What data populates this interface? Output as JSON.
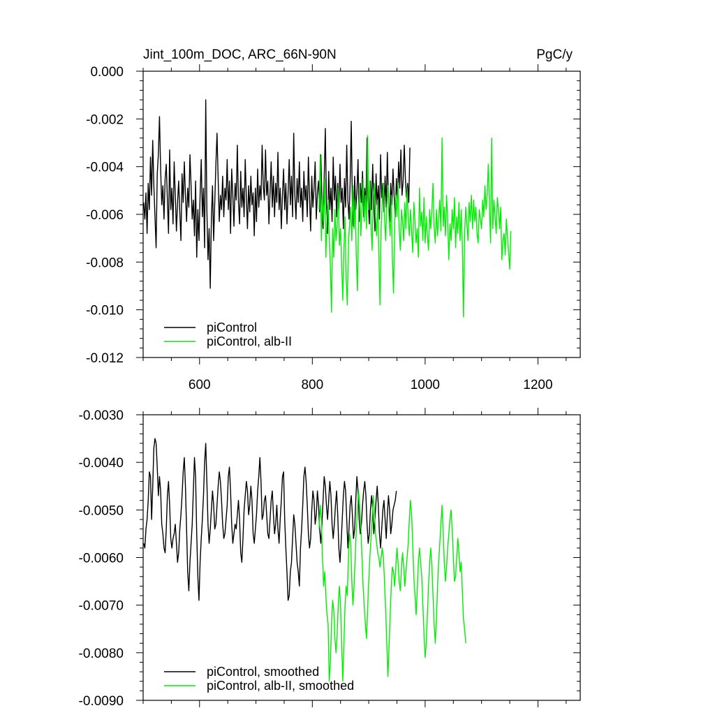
{
  "chart_data": [
    {
      "type": "line",
      "title": "Jint_100m_DOC, ARC_66N-90N",
      "units": "PgC/y",
      "xlim": [
        500,
        1275
      ],
      "ylim": [
        -0.012,
        0.0
      ],
      "x_ticks": [
        600,
        800,
        1000,
        1200
      ],
      "x_tick_labels": [
        "600",
        "800",
        "1000",
        "1200"
      ],
      "y_ticks": [
        0.0,
        -0.002,
        -0.004,
        -0.006,
        -0.008,
        -0.01,
        -0.012
      ],
      "y_tick_labels": [
        "0.000",
        "-0.002",
        "-0.004",
        "-0.006",
        "-0.008",
        "-0.010",
        "-0.012"
      ],
      "legend_position": "bottom-left",
      "series": [
        {
          "name": "piControl",
          "color": "#000000",
          "x_start": 501,
          "x_step": 2,
          "values": [
            -0.0055,
            -0.0062,
            -0.0051,
            -0.0068,
            -0.0047,
            -0.0058,
            -0.0036,
            -0.0052,
            -0.0029,
            -0.0048,
            -0.0061,
            -0.0074,
            -0.0043,
            -0.0035,
            -0.0019,
            -0.0041,
            -0.0056,
            -0.0048,
            -0.0062,
            -0.0045,
            -0.0039,
            -0.0054,
            -0.0068,
            -0.0033,
            -0.0058,
            -0.0049,
            -0.0064,
            -0.0038,
            -0.0052,
            -0.0067,
            -0.0055,
            -0.0046,
            -0.0059,
            -0.0071,
            -0.0043,
            -0.0055,
            -0.0038,
            -0.0052,
            -0.0063,
            -0.0049,
            -0.0057,
            -0.0035,
            -0.0048,
            -0.0062,
            -0.0054,
            -0.0069,
            -0.0046,
            -0.0078,
            -0.0058,
            -0.0071,
            -0.0052,
            -0.0037,
            -0.0061,
            -0.0049,
            -0.0074,
            -0.0012,
            -0.0058,
            -0.0079,
            -0.0066,
            -0.0091,
            -0.0062,
            -0.0048,
            -0.0071,
            -0.0055,
            -0.0039,
            -0.0026,
            -0.0045,
            -0.0063,
            -0.0052,
            -0.0058,
            -0.0044,
            -0.0061,
            -0.0049,
            -0.0054,
            -0.0037,
            -0.0058,
            -0.0046,
            -0.0068,
            -0.0041,
            -0.0052,
            -0.0065,
            -0.0047,
            -0.0054,
            -0.0031,
            -0.0055,
            -0.0064,
            -0.0042,
            -0.0057,
            -0.0049,
            -0.0061,
            -0.0037,
            -0.0053,
            -0.0066,
            -0.0048,
            -0.0059,
            -0.0044,
            -0.0056,
            -0.0051,
            -0.0069,
            -0.0049,
            -0.0063,
            -0.0041,
            -0.0057,
            -0.0048,
            -0.0054,
            -0.0031,
            -0.0048,
            -0.0054,
            -0.0033,
            -0.0052,
            -0.0046,
            -0.0064,
            -0.0051,
            -0.0038,
            -0.0057,
            -0.0044,
            -0.0061,
            -0.0047,
            -0.0055,
            -0.0034,
            -0.0058,
            -0.0049,
            -0.0066,
            -0.0052,
            -0.0041,
            -0.0058,
            -0.0047,
            -0.0064,
            -0.0051,
            -0.0037,
            -0.0056,
            -0.0044,
            -0.0061,
            -0.0026,
            -0.0052,
            -0.0062,
            -0.0045,
            -0.0055,
            -0.0038,
            -0.0057,
            -0.0049,
            -0.0063,
            -0.0042,
            -0.0054,
            -0.0048,
            -0.0061,
            -0.0036,
            -0.0053,
            -0.0067,
            -0.0044,
            -0.0057,
            -0.0049,
            -0.0038,
            -0.0062,
            -0.0051,
            -0.0046,
            -0.0059,
            -0.0035,
            -0.0053,
            -0.0066,
            -0.0045,
            -0.0024,
            -0.0055,
            -0.0068,
            -0.0042,
            -0.0058,
            -0.0049,
            -0.0063,
            -0.0036,
            -0.0054,
            -0.0044,
            -0.0061,
            -0.0047,
            -0.0058,
            -0.0039,
            -0.0055,
            -0.0049,
            -0.0066,
            -0.0045,
            -0.0057,
            -0.0031,
            -0.0054,
            -0.0062,
            -0.0047,
            -0.0021,
            -0.0056,
            -0.0065,
            -0.0044,
            -0.0058,
            -0.0051,
            -0.0037,
            -0.0063,
            -0.0047,
            -0.0055,
            -0.0042,
            -0.0061,
            -0.0049,
            -0.0057,
            -0.0028,
            -0.0054,
            -0.0064,
            -0.0046,
            -0.0058,
            -0.0039,
            -0.0055,
            -0.0067,
            -0.0043,
            -0.0056,
            -0.0048,
            -0.0062,
            -0.0035,
            -0.0053,
            -0.0047,
            -0.0059,
            -0.0044,
            -0.0057,
            -0.0034,
            -0.0055,
            -0.0063,
            -0.0047,
            -0.0056,
            -0.0041,
            -0.0052,
            -0.0061,
            -0.0045,
            -0.0054,
            -0.0038,
            -0.0049,
            -0.0033,
            -0.0052,
            -0.0046,
            -0.0031,
            -0.0045,
            -0.0053,
            -0.0047,
            -0.0055,
            -0.0032
          ]
        },
        {
          "name": "piControl, alb-II",
          "color": "#00ee00",
          "x_start": 812,
          "x_step": 2,
          "values": [
            -0.0058,
            -0.0035,
            -0.0071,
            -0.0052,
            -0.0063,
            -0.0045,
            -0.0078,
            -0.0061,
            -0.0054,
            -0.0069,
            -0.0082,
            -0.0101,
            -0.0066,
            -0.0078,
            -0.0058,
            -0.0071,
            -0.0064,
            -0.0049,
            -0.0073,
            -0.0066,
            -0.0081,
            -0.0096,
            -0.0074,
            -0.0061,
            -0.0087,
            -0.0098,
            -0.0072,
            -0.0064,
            -0.0057,
            -0.0071,
            -0.0048,
            -0.0066,
            -0.0054,
            -0.0078,
            -0.0092,
            -0.0061,
            -0.0048,
            -0.0069,
            -0.0057,
            -0.0045,
            -0.0063,
            -0.0052,
            -0.0066,
            -0.0027,
            -0.0058,
            -0.0046,
            -0.0064,
            -0.0075,
            -0.0052,
            -0.0047,
            -0.0061,
            -0.0069,
            -0.0054,
            -0.0078,
            -0.0098,
            -0.0065,
            -0.0055,
            -0.0047,
            -0.0061,
            -0.0071,
            -0.0056,
            -0.0048,
            -0.0062,
            -0.0069,
            -0.0052,
            -0.0079,
            -0.0093,
            -0.0064,
            -0.0052,
            -0.0061,
            -0.0047,
            -0.0066,
            -0.0075,
            -0.0058,
            -0.0063,
            -0.0071,
            -0.0055,
            -0.0066,
            -0.0049,
            -0.0062,
            -0.0069,
            -0.0058,
            -0.0067,
            -0.0076,
            -0.0055,
            -0.0063,
            -0.0072,
            -0.0066,
            -0.0078,
            -0.0049,
            -0.0065,
            -0.0059,
            -0.0071,
            -0.0053,
            -0.0072,
            -0.0061,
            -0.0069,
            -0.0075,
            -0.0058,
            -0.0066,
            -0.0058,
            -0.0047,
            -0.0065,
            -0.0072,
            -0.0058,
            -0.0069,
            -0.0061,
            -0.0054,
            -0.0067,
            -0.0028,
            -0.0065,
            -0.0057,
            -0.0069,
            -0.0052,
            -0.0062,
            -0.0079,
            -0.0064,
            -0.0071,
            -0.0058,
            -0.0066,
            -0.0053,
            -0.0074,
            -0.0061,
            -0.0068,
            -0.0055,
            -0.0071,
            -0.0058,
            -0.0073,
            -0.0103,
            -0.0068,
            -0.0057,
            -0.0064,
            -0.0071,
            -0.0055,
            -0.0063,
            -0.0052,
            -0.0066,
            -0.0054,
            -0.0063,
            -0.0057,
            -0.0068,
            -0.0072,
            -0.0058,
            -0.0062,
            -0.0066,
            -0.0054,
            -0.0061,
            -0.0048,
            -0.0058,
            -0.0052,
            -0.0039,
            -0.0056,
            -0.0072,
            -0.0028,
            -0.0066,
            -0.0054,
            -0.0061,
            -0.0068,
            -0.0053,
            -0.0058,
            -0.0066,
            -0.0057,
            -0.0079,
            -0.0071,
            -0.0068,
            -0.0077,
            -0.0062,
            -0.0069,
            -0.0076,
            -0.0083,
            -0.0067
          ]
        }
      ]
    },
    {
      "type": "line",
      "xlim": [
        500,
        1275
      ],
      "ylim": [
        -0.009,
        -0.003
      ],
      "x_ticks": [
        600,
        800,
        1000,
        1200
      ],
      "y_ticks": [
        -0.003,
        -0.004,
        -0.005,
        -0.006,
        -0.007,
        -0.008,
        -0.009
      ],
      "y_tick_labels": [
        "-0.0030",
        "-0.0040",
        "-0.0050",
        "-0.0060",
        "-0.0070",
        "-0.0080",
        "-0.0090"
      ],
      "legend_position": "bottom-left",
      "series": [
        {
          "name": "piControl, smoothed",
          "color": "#000000",
          "x_start": 501,
          "x_step": 2,
          "values": [
            -0.0057,
            -0.0058,
            -0.0054,
            -0.0052,
            -0.0048,
            -0.0042,
            -0.0043,
            -0.0052,
            -0.0045,
            -0.0037,
            -0.0035,
            -0.0036,
            -0.0041,
            -0.0047,
            -0.0043,
            -0.0046,
            -0.0053,
            -0.0055,
            -0.0058,
            -0.0059,
            -0.0054,
            -0.0047,
            -0.0044,
            -0.0049,
            -0.0056,
            -0.0058,
            -0.0056,
            -0.0055,
            -0.0053,
            -0.0057,
            -0.0061,
            -0.0059,
            -0.0054,
            -0.0051,
            -0.0047,
            -0.0042,
            -0.0039,
            -0.0045,
            -0.0054,
            -0.0063,
            -0.0067,
            -0.0061,
            -0.0057,
            -0.0053,
            -0.0046,
            -0.0039,
            -0.0043,
            -0.0055,
            -0.0064,
            -0.0069,
            -0.0061,
            -0.0056,
            -0.0052,
            -0.0047,
            -0.004,
            -0.0036,
            -0.0044,
            -0.0053,
            -0.0057,
            -0.0054,
            -0.005,
            -0.0046,
            -0.0049,
            -0.0054,
            -0.0053,
            -0.0049,
            -0.0045,
            -0.0042,
            -0.0044,
            -0.0048,
            -0.0053,
            -0.0056,
            -0.0055,
            -0.0052,
            -0.0049,
            -0.0043,
            -0.0041,
            -0.0046,
            -0.0053,
            -0.0057,
            -0.0055,
            -0.0053,
            -0.0054,
            -0.0051,
            -0.0048,
            -0.0052,
            -0.0059,
            -0.0061,
            -0.0056,
            -0.005,
            -0.0047,
            -0.0044,
            -0.0046,
            -0.0051,
            -0.0049,
            -0.0045,
            -0.0048,
            -0.0055,
            -0.0057,
            -0.0054,
            -0.0051,
            -0.0046,
            -0.0043,
            -0.0039,
            -0.0044,
            -0.0052,
            -0.0051,
            -0.0048,
            -0.0047,
            -0.0051,
            -0.0055,
            -0.0056,
            -0.0052,
            -0.0048,
            -0.0046,
            -0.0051,
            -0.0055,
            -0.0053,
            -0.0049,
            -0.0054,
            -0.0057,
            -0.0052,
            -0.0048,
            -0.0043,
            -0.0042,
            -0.0052,
            -0.0058,
            -0.0063,
            -0.0069,
            -0.0068,
            -0.0063,
            -0.0061,
            -0.0056,
            -0.0051,
            -0.0053,
            -0.0057,
            -0.0061,
            -0.0063,
            -0.0066,
            -0.0058,
            -0.0054,
            -0.0049,
            -0.0043,
            -0.0041,
            -0.0044,
            -0.0049,
            -0.0055,
            -0.0058,
            -0.0056,
            -0.005,
            -0.0046,
            -0.0048,
            -0.0053,
            -0.0051,
            -0.0046,
            -0.0049,
            -0.0054,
            -0.0057,
            -0.0053,
            -0.0048,
            -0.0043,
            -0.0045,
            -0.0049,
            -0.0052,
            -0.0048,
            -0.0044,
            -0.0047,
            -0.0053,
            -0.0056,
            -0.0053,
            -0.0049,
            -0.0046,
            -0.0051,
            -0.0058,
            -0.0061,
            -0.0057,
            -0.0052,
            -0.0047,
            -0.0044,
            -0.0046,
            -0.0052,
            -0.0058,
            -0.0054,
            -0.0049,
            -0.0047,
            -0.0051,
            -0.0056,
            -0.0054,
            -0.0048,
            -0.0043,
            -0.0046,
            -0.0052,
            -0.0055,
            -0.0053,
            -0.0049,
            -0.0046,
            -0.0044,
            -0.0047,
            -0.0053,
            -0.0057,
            -0.0055,
            -0.005,
            -0.0047,
            -0.005,
            -0.0055,
            -0.0052,
            -0.0048,
            -0.0045,
            -0.0049,
            -0.0055,
            -0.0058,
            -0.0054,
            -0.005,
            -0.0048,
            -0.0052,
            -0.0056,
            -0.0051,
            -0.0047,
            -0.005,
            -0.0055,
            -0.0053,
            -0.005,
            -0.0049,
            -0.0048,
            -0.0046
          ]
        },
        {
          "name": "piControl, alb-II, smoothed",
          "color": "#00ee00",
          "x_start": 812,
          "x_step": 2,
          "values": [
            -0.0054,
            -0.0049,
            -0.0052,
            -0.006,
            -0.0066,
            -0.0063,
            -0.0068,
            -0.0072,
            -0.0074,
            -0.0086,
            -0.0082,
            -0.0074,
            -0.0069,
            -0.0071,
            -0.0077,
            -0.008,
            -0.0076,
            -0.007,
            -0.0066,
            -0.007,
            -0.0078,
            -0.0086,
            -0.0078,
            -0.007,
            -0.0066,
            -0.0068,
            -0.006,
            -0.0055,
            -0.0057,
            -0.0065,
            -0.007,
            -0.0066,
            -0.006,
            -0.0054,
            -0.005,
            -0.0046,
            -0.0049,
            -0.0053,
            -0.006,
            -0.0066,
            -0.007,
            -0.0074,
            -0.0077,
            -0.0071,
            -0.0065,
            -0.006,
            -0.0056,
            -0.0052,
            -0.0047,
            -0.005,
            -0.0055,
            -0.0057,
            -0.0059,
            -0.006,
            -0.0062,
            -0.006,
            -0.0058,
            -0.006,
            -0.0065,
            -0.0071,
            -0.0078,
            -0.0085,
            -0.0079,
            -0.0072,
            -0.0066,
            -0.0062,
            -0.0063,
            -0.0066,
            -0.0062,
            -0.0058,
            -0.0061,
            -0.0065,
            -0.0067,
            -0.0062,
            -0.0059,
            -0.0062,
            -0.0066,
            -0.0063,
            -0.006,
            -0.0057,
            -0.0052,
            -0.0048,
            -0.0051,
            -0.0057,
            -0.0064,
            -0.0068,
            -0.0072,
            -0.0067,
            -0.0061,
            -0.0058,
            -0.0061,
            -0.0064,
            -0.007,
            -0.0076,
            -0.0081,
            -0.0078,
            -0.0072,
            -0.0066,
            -0.0061,
            -0.0058,
            -0.0062,
            -0.0068,
            -0.0074,
            -0.0078,
            -0.0073,
            -0.0066,
            -0.0061,
            -0.0057,
            -0.0053,
            -0.0049,
            -0.0055,
            -0.0061,
            -0.0065,
            -0.0062,
            -0.0058,
            -0.0055,
            -0.0052,
            -0.005,
            -0.0054,
            -0.006,
            -0.0065,
            -0.0064,
            -0.006,
            -0.0056,
            -0.0059,
            -0.0063,
            -0.0061,
            -0.0067,
            -0.0073,
            -0.0075,
            -0.0078
          ]
        }
      ]
    }
  ],
  "panel1": {
    "title_left": "Jint_100m_DOC, ARC_66N-90N",
    "title_right": "PgC/y",
    "legend": [
      "piControl",
      "piControl, alb-II"
    ]
  },
  "panel2": {
    "legend": [
      "piControl, smoothed",
      "piControl, alb-II, smoothed"
    ]
  }
}
